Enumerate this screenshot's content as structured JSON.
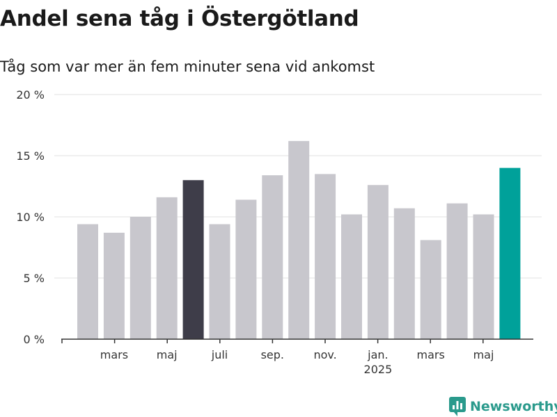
{
  "title": "Andel sena tåg i Östergötland",
  "subtitle": "Tåg som var mer än fem minuter sena vid ankomst",
  "brand": "Newsworthy",
  "colors": {
    "bar_default": "#c8c7cd",
    "bar_highlight_dark": "#3e3d49",
    "bar_highlight_accent": "#00a19a",
    "grid": "#e2e2e2",
    "axis": "#333333",
    "brand": "#2a9a8c"
  },
  "chart_data": {
    "type": "bar",
    "title": "Andel sena tåg i Östergötland",
    "subtitle": "Tåg som var mer än fem minuter sena vid ankomst",
    "categories": [
      "2024-02",
      "2024-03",
      "2024-04",
      "2024-05",
      "2024-06",
      "2024-07",
      "2024-08",
      "2024-09",
      "2024-10",
      "2024-11",
      "2024-12",
      "2025-01",
      "2025-02",
      "2025-03",
      "2025-04",
      "2025-05",
      "2025-06"
    ],
    "values": [
      9.4,
      8.7,
      10.0,
      11.6,
      13.0,
      9.4,
      11.4,
      13.4,
      16.2,
      13.5,
      10.2,
      12.6,
      10.7,
      8.1,
      11.1,
      10.2,
      14.0
    ],
    "highlight": {
      "2024-06": "bar_highlight_dark",
      "2025-06": "bar_highlight_accent"
    },
    "ylim": [
      0,
      20
    ],
    "yticks": [
      {
        "value": 0,
        "label": "0 %"
      },
      {
        "value": 5,
        "label": "5 %"
      },
      {
        "value": 10,
        "label": "10 %"
      },
      {
        "value": 15,
        "label": "15 %"
      },
      {
        "value": 20,
        "label": "20 %"
      }
    ],
    "xticks": [
      {
        "category": "2024-03",
        "label": "mars",
        "sublabel": ""
      },
      {
        "category": "2024-05",
        "label": "maj",
        "sublabel": ""
      },
      {
        "category": "2024-07",
        "label": "juli",
        "sublabel": ""
      },
      {
        "category": "2024-09",
        "label": "sep.",
        "sublabel": ""
      },
      {
        "category": "2024-11",
        "label": "nov.",
        "sublabel": ""
      },
      {
        "category": "2025-01",
        "label": "jan.",
        "sublabel": "2025"
      },
      {
        "category": "2025-03",
        "label": "mars",
        "sublabel": ""
      },
      {
        "category": "2025-05",
        "label": "maj",
        "sublabel": ""
      }
    ],
    "xlabel": "",
    "ylabel": "",
    "grid": true,
    "legend": "none"
  }
}
